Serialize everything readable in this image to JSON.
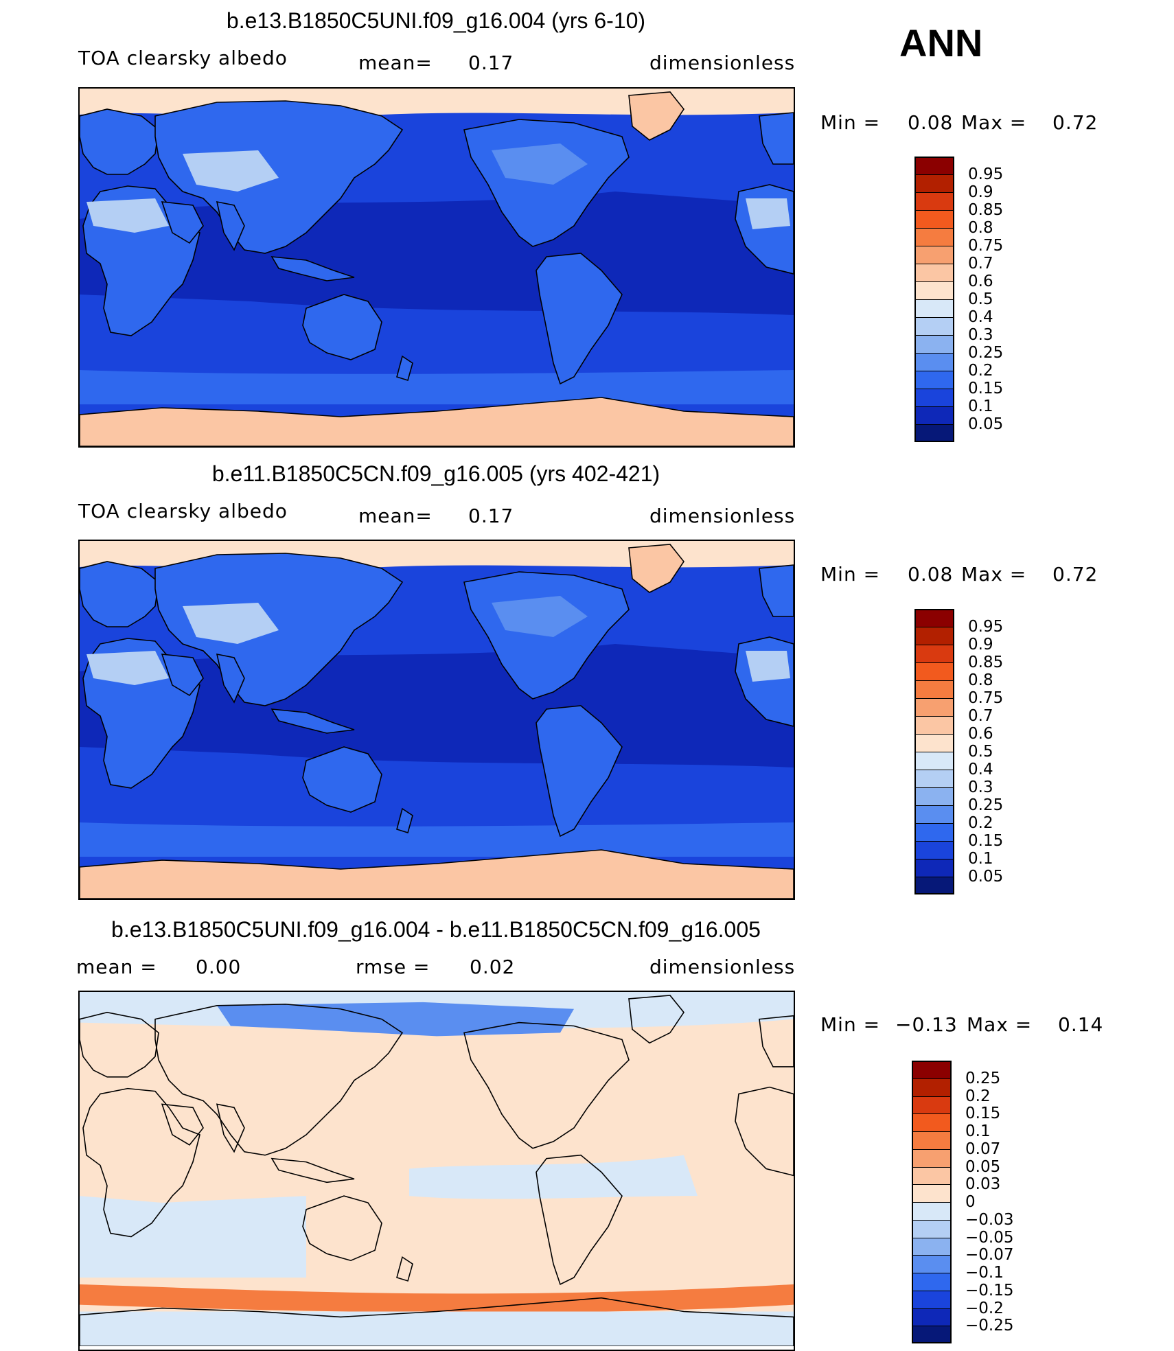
{
  "season": "ANN",
  "panels": [
    {
      "title": "b.e13.B1850C5UNI.f09_g16.004 (yrs 6-10)",
      "variable": "TOA clearsky albedo",
      "stat1_label": "mean=",
      "stat1_value": "0.17",
      "units": "dimensionless",
      "min_label": "Min =",
      "min_value": "0.08",
      "max_label": "Max =",
      "max_value": "0.72",
      "kind": "field"
    },
    {
      "title": "b.e11.B1850C5CN.f09_g16.005 (yrs 402-421)",
      "variable": "TOA clearsky albedo",
      "stat1_label": "mean=",
      "stat1_value": "0.17",
      "units": "dimensionless",
      "min_label": "Min =",
      "min_value": "0.08",
      "max_label": "Max =",
      "max_value": "0.72",
      "kind": "field"
    },
    {
      "title": "b.e13.B1850C5UNI.f09_g16.004 - b.e11.B1850C5CN.f09_g16.005",
      "stat1_label": "mean =",
      "stat1_value": "0.00",
      "stat2_label": "rmse =",
      "stat2_value": "0.02",
      "units": "dimensionless",
      "min_label": "Min =",
      "min_value": "−0.13",
      "max_label": "Max =",
      "max_value": "0.14",
      "kind": "diff"
    }
  ],
  "colorbar_field": {
    "labels": [
      "0.95",
      "0.9",
      "0.85",
      "0.8",
      "0.75",
      "0.7",
      "0.6",
      "0.5",
      "0.4",
      "0.3",
      "0.25",
      "0.2",
      "0.15",
      "0.1",
      "0.05"
    ],
    "colors": [
      "#8b0000",
      "#b22000",
      "#d93a10",
      "#f25a1e",
      "#f57c40",
      "#f7a070",
      "#fbc6a4",
      "#fde3cd",
      "#d8e8f8",
      "#b4cff4",
      "#8bb2f0",
      "#5a8ef0",
      "#2f68ee",
      "#1a44dc",
      "#0e28b8",
      "#061878"
    ]
  },
  "colorbar_diff": {
    "labels": [
      "0.25",
      "0.2",
      "0.15",
      "0.1",
      "0.07",
      "0.05",
      "0.03",
      "0",
      "−0.03",
      "−0.05",
      "−0.07",
      "−0.1",
      "−0.15",
      "−0.2",
      "−0.25"
    ],
    "colors": [
      "#8b0000",
      "#b22000",
      "#d93a10",
      "#f25a1e",
      "#f57c40",
      "#f7a070",
      "#fbc6a4",
      "#fde3cd",
      "#d8e8f8",
      "#b4cff4",
      "#8bb2f0",
      "#5a8ef0",
      "#2f68ee",
      "#1a44dc",
      "#0e28b8",
      "#061878"
    ]
  },
  "palette": {
    "ocean_deep": "#0e28b8",
    "ocean": "#1a44dc",
    "land": "#2f68ee",
    "land_light": "#5a8ef0",
    "desert": "#b4cff4",
    "ice": "#fbc6a4",
    "ice_light": "#fde3cd",
    "diff_bg": "#fde3cd",
    "diff_neg": "#d8e8f8",
    "diff_neg2": "#5a8ef0",
    "diff_pos": "#f57c40"
  }
}
